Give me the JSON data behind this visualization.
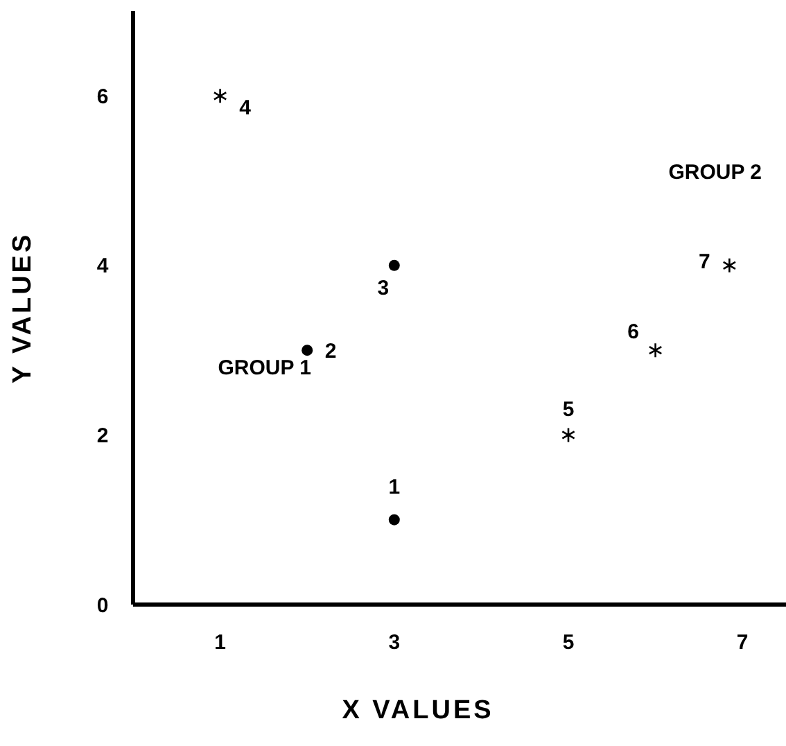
{
  "chart_data": {
    "type": "scatter",
    "xlabel": "X VALUES",
    "ylabel": "Y VALUES",
    "xlim": [
      0,
      7.5
    ],
    "ylim": [
      0,
      7
    ],
    "xticks": [
      1,
      3,
      5,
      7
    ],
    "yticks": [
      0,
      2,
      4,
      6
    ],
    "grid": false,
    "series": [
      {
        "color": "#000000",
        "marker": "circle",
        "x": [
          3,
          2,
          3
        ],
        "values": [
          1,
          3,
          4
        ]
      },
      {
        "color": "#000000",
        "marker": "cross",
        "x": [
          1,
          5,
          6,
          6.85
        ],
        "values": [
          6,
          2,
          3,
          4
        ]
      }
    ],
    "annotations": [
      {
        "text": "1",
        "x": 3,
        "y": 1
      },
      {
        "text": "2",
        "x": 2,
        "y": 3
      },
      {
        "text": "3",
        "x": 3,
        "y": 4
      },
      {
        "text": "4",
        "x": 1,
        "y": 6
      },
      {
        "text": "5",
        "x": 5,
        "y": 2
      },
      {
        "text": "6",
        "x": 6,
        "y": 3
      },
      {
        "text": "7",
        "x": 6.85,
        "y": 4
      },
      "GROUP 1",
      "GROUP 2"
    ]
  }
}
